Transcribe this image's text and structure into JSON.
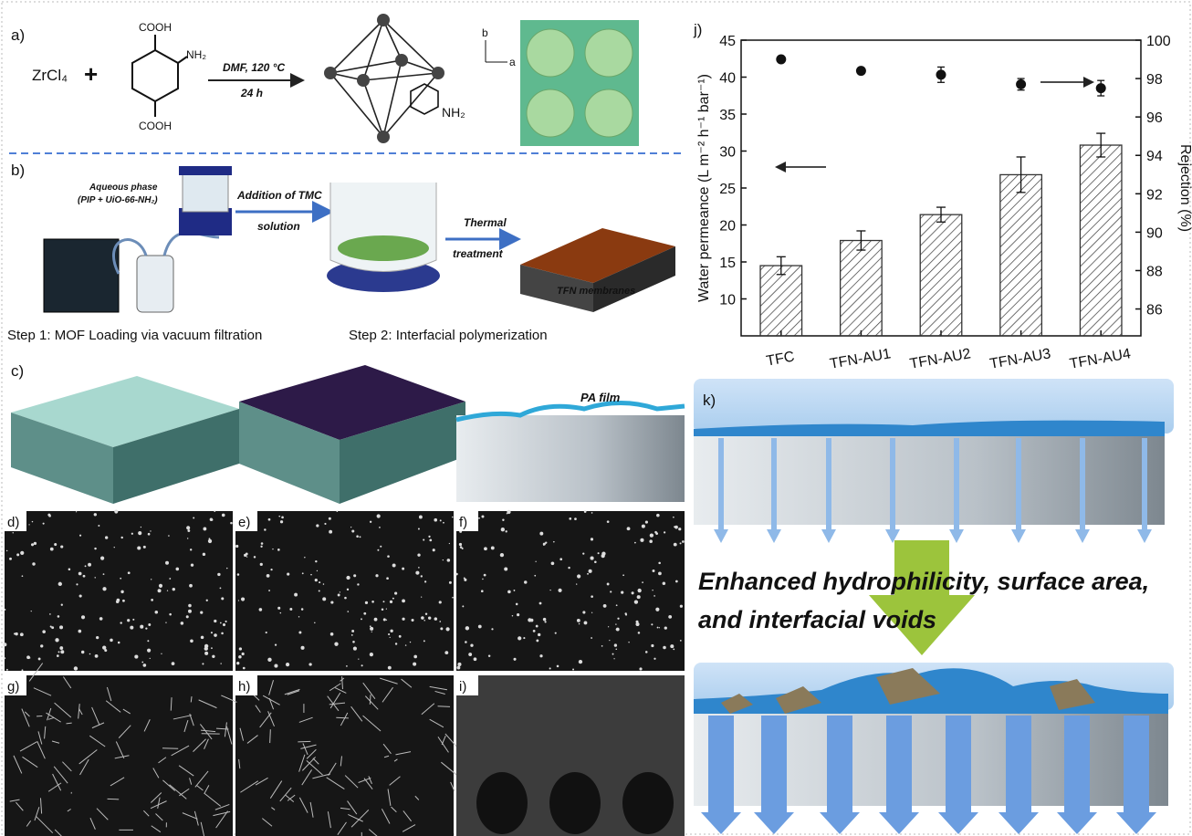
{
  "panels": {
    "a": {
      "label": "a)",
      "reactant": "ZrCl₄",
      "plus": "+",
      "linker_groups": [
        "COOH",
        "NH₂",
        "COOH"
      ],
      "conditions": [
        "DMF, 120 °C",
        "24 h"
      ],
      "product_group": "NH₂",
      "axes": [
        "b",
        "a"
      ]
    },
    "b": {
      "label": "b)",
      "phase": [
        "Aqueous phase",
        "(PIP + UiO-66-NH₂)"
      ],
      "arrow_1": [
        "Addition of TMC",
        "solution"
      ],
      "arrow_2": [
        "Thermal",
        "treatment"
      ],
      "product": "TFN membranes",
      "steps": [
        "Step 1: MOF Loading via vacuum filtration",
        "Step 2: Interfacial polymerization"
      ]
    },
    "c": {
      "label": "c)",
      "film": "PA film"
    },
    "sem": [
      "d)",
      "e)",
      "f)",
      "g)",
      "h)",
      "i)"
    ],
    "k": {
      "label": "k)",
      "caption": [
        "Enhanced hydrophilicity, surface area,",
        "and interfacial voids"
      ]
    }
  },
  "chart_data": {
    "type": "bar",
    "label": "j)",
    "categories": [
      "TFC",
      "TFN-AU1",
      "TFN-AU2",
      "TFN-AU3",
      "TFN-AU4"
    ],
    "series": [
      {
        "type": "bar",
        "values": [
          14.5,
          17.9,
          21.4,
          26.8,
          30.8
        ],
        "errors": [
          1.2,
          1.3,
          1.0,
          2.4,
          1.6
        ],
        "color": "#333333",
        "pattern": "hatch"
      },
      {
        "type": "scatter",
        "axis": "y2",
        "values": [
          99.0,
          98.4,
          98.2,
          97.7,
          97.5
        ],
        "errors": [
          0.1,
          0.15,
          0.4,
          0.3,
          0.4
        ],
        "color": "#111111"
      }
    ],
    "ylabel": "Water permeance (L m⁻² h⁻¹ bar⁻¹)",
    "y2label": "Rejection (%)",
    "ylim": [
      5,
      45
    ],
    "yticks": [
      10,
      15,
      20,
      25,
      30,
      35,
      40,
      45
    ],
    "y2lim": [
      84.6,
      100
    ],
    "y2ticks": [
      86,
      88,
      90,
      92,
      94,
      96,
      98,
      100
    ]
  }
}
